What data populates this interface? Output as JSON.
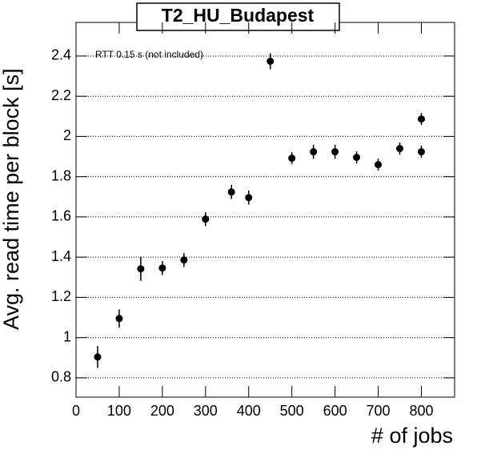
{
  "chart_data": {
    "type": "scatter",
    "title": "T2_HU_Budapest",
    "annotation": "RTT 0.15 s (not included)",
    "x_label": "# of jobs",
    "y_label": "Avg. read time per block [s]",
    "x": [
      50,
      100,
      150,
      200,
      250,
      300,
      360,
      400,
      450,
      500,
      550,
      600,
      650,
      700,
      750,
      800,
      800
    ],
    "values": [
      0.904,
      1.095,
      1.342,
      1.346,
      1.386,
      1.589,
      1.724,
      1.696,
      2.374,
      1.892,
      1.924,
      1.924,
      1.896,
      1.86,
      1.94,
      2.087,
      1.924
    ],
    "errors": [
      0.055,
      0.045,
      0.06,
      0.035,
      0.035,
      0.035,
      0.035,
      0.035,
      0.04,
      0.03,
      0.035,
      0.035,
      0.03,
      0.03,
      0.03,
      0.03,
      0.03
    ],
    "color": "#000000",
    "xlim": [
      0,
      877
    ],
    "ylim": [
      0.704,
      2.567
    ],
    "xticks": [
      0,
      100,
      200,
      300,
      400,
      500,
      600,
      700,
      800
    ],
    "yticks": [
      0.8,
      1,
      1.2,
      1.4,
      1.6,
      1.8,
      2,
      2.2,
      2.4
    ],
    "grid": true
  }
}
